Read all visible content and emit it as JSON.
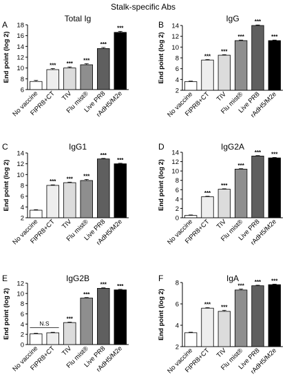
{
  "figure_title": "Stalk-specific Abs",
  "categories": [
    "No vaccine",
    "FIPR8+CT",
    "TIV",
    "Flu mist®",
    "Live PR8",
    "rAdH5/M2e"
  ],
  "bar_colors": [
    "#ffffff",
    "#eeeeee",
    "#dcdcdc",
    "#8e8e8e",
    "#5f5f5f",
    "#000000"
  ],
  "chart_data": [
    {
      "type": "bar",
      "panel_label": "A",
      "title": "Total Ig",
      "ylabel": "End point (log 2)",
      "categories": [
        "No vaccine",
        "FIPR8+CT",
        "TIV",
        "Flu mist®",
        "Live PR8",
        "rAdH5/M2e"
      ],
      "values": [
        7.5,
        9.7,
        10.0,
        10.6,
        13.6,
        16.6
      ],
      "errors": [
        0.2,
        0.2,
        0.2,
        0.2,
        0.2,
        0.2
      ],
      "significance": [
        "",
        "***",
        "***",
        "***",
        "***",
        "***"
      ],
      "ylim": [
        6,
        18
      ],
      "yticks": [
        6,
        8,
        10,
        12,
        14,
        16,
        18
      ]
    },
    {
      "type": "bar",
      "panel_label": "B",
      "title": "IgG",
      "ylabel": "End point (log 2)",
      "categories": [
        "No vaccine",
        "FIPR8+CT",
        "TIV",
        "Flu mist®",
        "Live PR8",
        "rAdH5/M2e"
      ],
      "values": [
        3.6,
        7.6,
        8.5,
        11.2,
        14.0,
        11.2
      ],
      "errors": [
        0.1,
        0.1,
        0.1,
        0.1,
        0.1,
        0.1
      ],
      "significance": [
        "",
        "***",
        "***",
        "***",
        "***",
        "***"
      ],
      "ylim": [
        2,
        14
      ],
      "yticks": [
        2,
        4,
        6,
        8,
        10,
        12,
        14
      ]
    },
    {
      "type": "bar",
      "panel_label": "C",
      "title": "IgG1",
      "ylabel": "End point (log 2)",
      "categories": [
        "No vaccine",
        "FIPR8+CT",
        "TIV",
        "Flu mist®",
        "Live PR8",
        "rAdH5/M2e"
      ],
      "values": [
        3.4,
        8.0,
        8.5,
        8.9,
        12.9,
        12.0
      ],
      "errors": [
        0.1,
        0.1,
        0.1,
        0.2,
        0.1,
        0.1
      ],
      "significance": [
        "",
        "***",
        "***",
        "***",
        "***",
        "***"
      ],
      "ylim": [
        2,
        14
      ],
      "yticks": [
        2,
        4,
        6,
        8,
        10,
        12,
        14
      ]
    },
    {
      "type": "bar",
      "panel_label": "D",
      "title": "IgG2A",
      "ylabel": "End point (log 2)",
      "categories": [
        "No vaccine",
        "FIPR8+CT",
        "TIV",
        "Flu mist®",
        "Live PR8",
        "rAdH5/M2e"
      ],
      "values": [
        0.5,
        4.5,
        6.1,
        10.4,
        13.2,
        12.8
      ],
      "errors": [
        0.1,
        0.1,
        0.1,
        0.1,
        0.1,
        0.1
      ],
      "significance": [
        "",
        "***",
        "***",
        "***",
        "***",
        "***"
      ],
      "ylim": [
        0,
        14
      ],
      "yticks": [
        0,
        2,
        4,
        6,
        8,
        10,
        12,
        14
      ]
    },
    {
      "type": "bar",
      "panel_label": "E",
      "title": "IgG2B",
      "ylabel": "End point (log 2)",
      "categories": [
        "No vaccine",
        "FIPR8+CT",
        "TIV",
        "Flu mist®",
        "Live PR8",
        "rAdH5/M2e"
      ],
      "values": [
        2.1,
        2.3,
        4.3,
        9.1,
        11.0,
        10.7
      ],
      "errors": [
        0.1,
        0.1,
        0.1,
        0.1,
        0.1,
        0.1
      ],
      "significance": [
        "",
        "",
        "***",
        "***",
        "***",
        "***"
      ],
      "ns_label": "N.S",
      "ylim": [
        0,
        12
      ],
      "yticks": [
        0,
        2,
        4,
        6,
        8,
        10,
        12
      ]
    },
    {
      "type": "bar",
      "panel_label": "F",
      "title": "IgA",
      "ylabel": "End point (log 2)",
      "categories": [
        "No vaccine",
        "FIPR8+CT",
        "TIV",
        "Flu mist®",
        "Live PR8",
        "rAdH5/M2e"
      ],
      "values": [
        3.3,
        5.6,
        5.3,
        7.3,
        7.7,
        7.8
      ],
      "errors": [
        0.05,
        0.05,
        0.1,
        0.1,
        0.05,
        0.05
      ],
      "significance": [
        "",
        "***",
        "***",
        "***",
        "***",
        "***"
      ],
      "ylim": [
        2,
        8
      ],
      "yticks": [
        2,
        4,
        6,
        8
      ]
    }
  ]
}
